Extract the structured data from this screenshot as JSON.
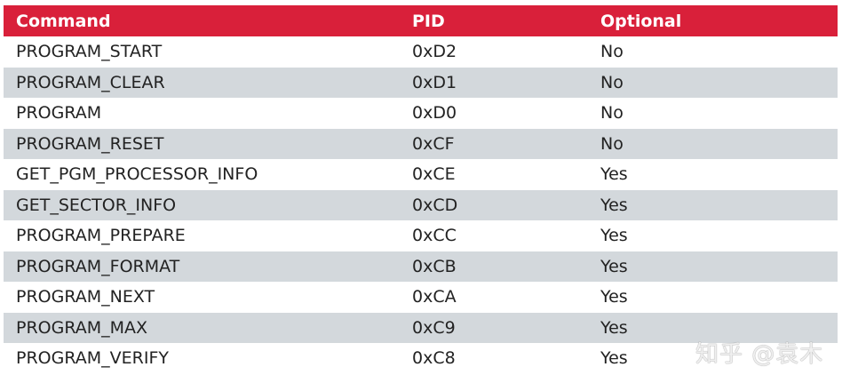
{
  "table": {
    "headers": [
      "Command",
      "PID",
      "Optional"
    ],
    "rows": [
      [
        "PROGRAM_START",
        "0xD2",
        "No"
      ],
      [
        "PROGRAM_CLEAR",
        "0xD1",
        "No"
      ],
      [
        "PROGRAM",
        "0xD0",
        "No"
      ],
      [
        "PROGRAM_RESET",
        "0xCF",
        "No"
      ],
      [
        "GET_PGM_PROCESSOR_INFO",
        "0xCE",
        "Yes"
      ],
      [
        "GET_SECTOR_INFO",
        "0xCD",
        "Yes"
      ],
      [
        "PROGRAM_PREPARE",
        "0xCC",
        "Yes"
      ],
      [
        "PROGRAM_FORMAT",
        "0xCB",
        "Yes"
      ],
      [
        "PROGRAM_NEXT",
        "0xCA",
        "Yes"
      ],
      [
        "PROGRAM_MAX",
        "0xC9",
        "Yes"
      ],
      [
        "PROGRAM_VERIFY",
        "0xC8",
        "Yes"
      ]
    ]
  },
  "colors": {
    "header_bg": "#d9203a",
    "alt_row_bg": "#d3d8dc"
  },
  "watermark": "知乎 @袁木"
}
